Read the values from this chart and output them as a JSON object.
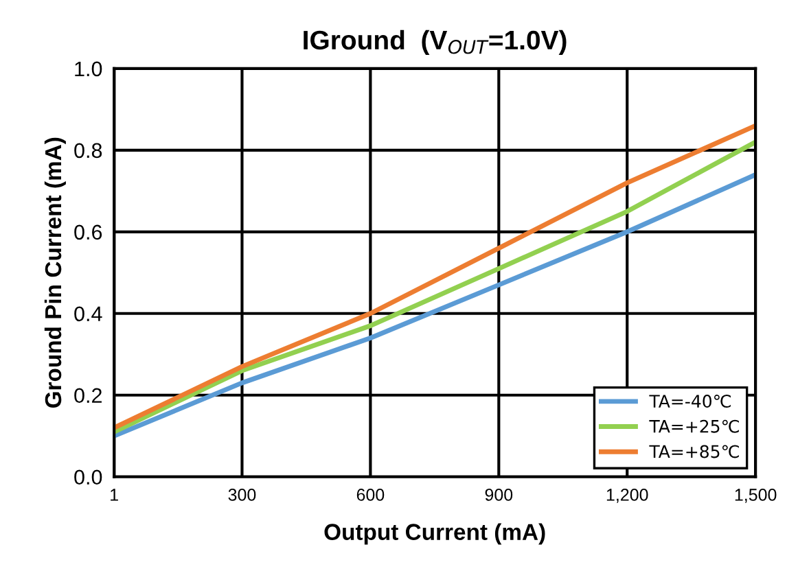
{
  "chart_data": {
    "type": "line",
    "title": "IGround  (V$_{OUT}$=1.0V)",
    "xlabel": "Output Current (mA)",
    "ylabel": "Ground Pin Current (mA)",
    "x": [
      1,
      300,
      600,
      900,
      1200,
      1500
    ],
    "series": [
      {
        "name": "TA=-40℃",
        "color": "#5b9bd5",
        "values": [
          0.1,
          0.23,
          0.34,
          0.47,
          0.6,
          0.74
        ]
      },
      {
        "name": "TA=+25℃",
        "color": "#92d050",
        "values": [
          0.11,
          0.26,
          0.37,
          0.51,
          0.65,
          0.82
        ]
      },
      {
        "name": "TA=+85℃",
        "color": "#ed7d31",
        "values": [
          0.12,
          0.27,
          0.4,
          0.56,
          0.72,
          0.86
        ]
      }
    ],
    "xlim": [
      1,
      1500
    ],
    "xticks": [
      1,
      300,
      600,
      900,
      {
        "value": 1200,
        "label": "1,200"
      },
      {
        "value": 1500,
        "label": "1,500"
      }
    ],
    "ylim": [
      0,
      1.0
    ],
    "yticks": [
      {
        "value": 0,
        "label": "0.0"
      },
      0.2,
      0.4,
      0.6,
      0.8,
      {
        "value": 1.0,
        "label": "1.0"
      }
    ],
    "grid": true,
    "legend": "lower right",
    "marker": "none",
    "line_style": "solid"
  }
}
